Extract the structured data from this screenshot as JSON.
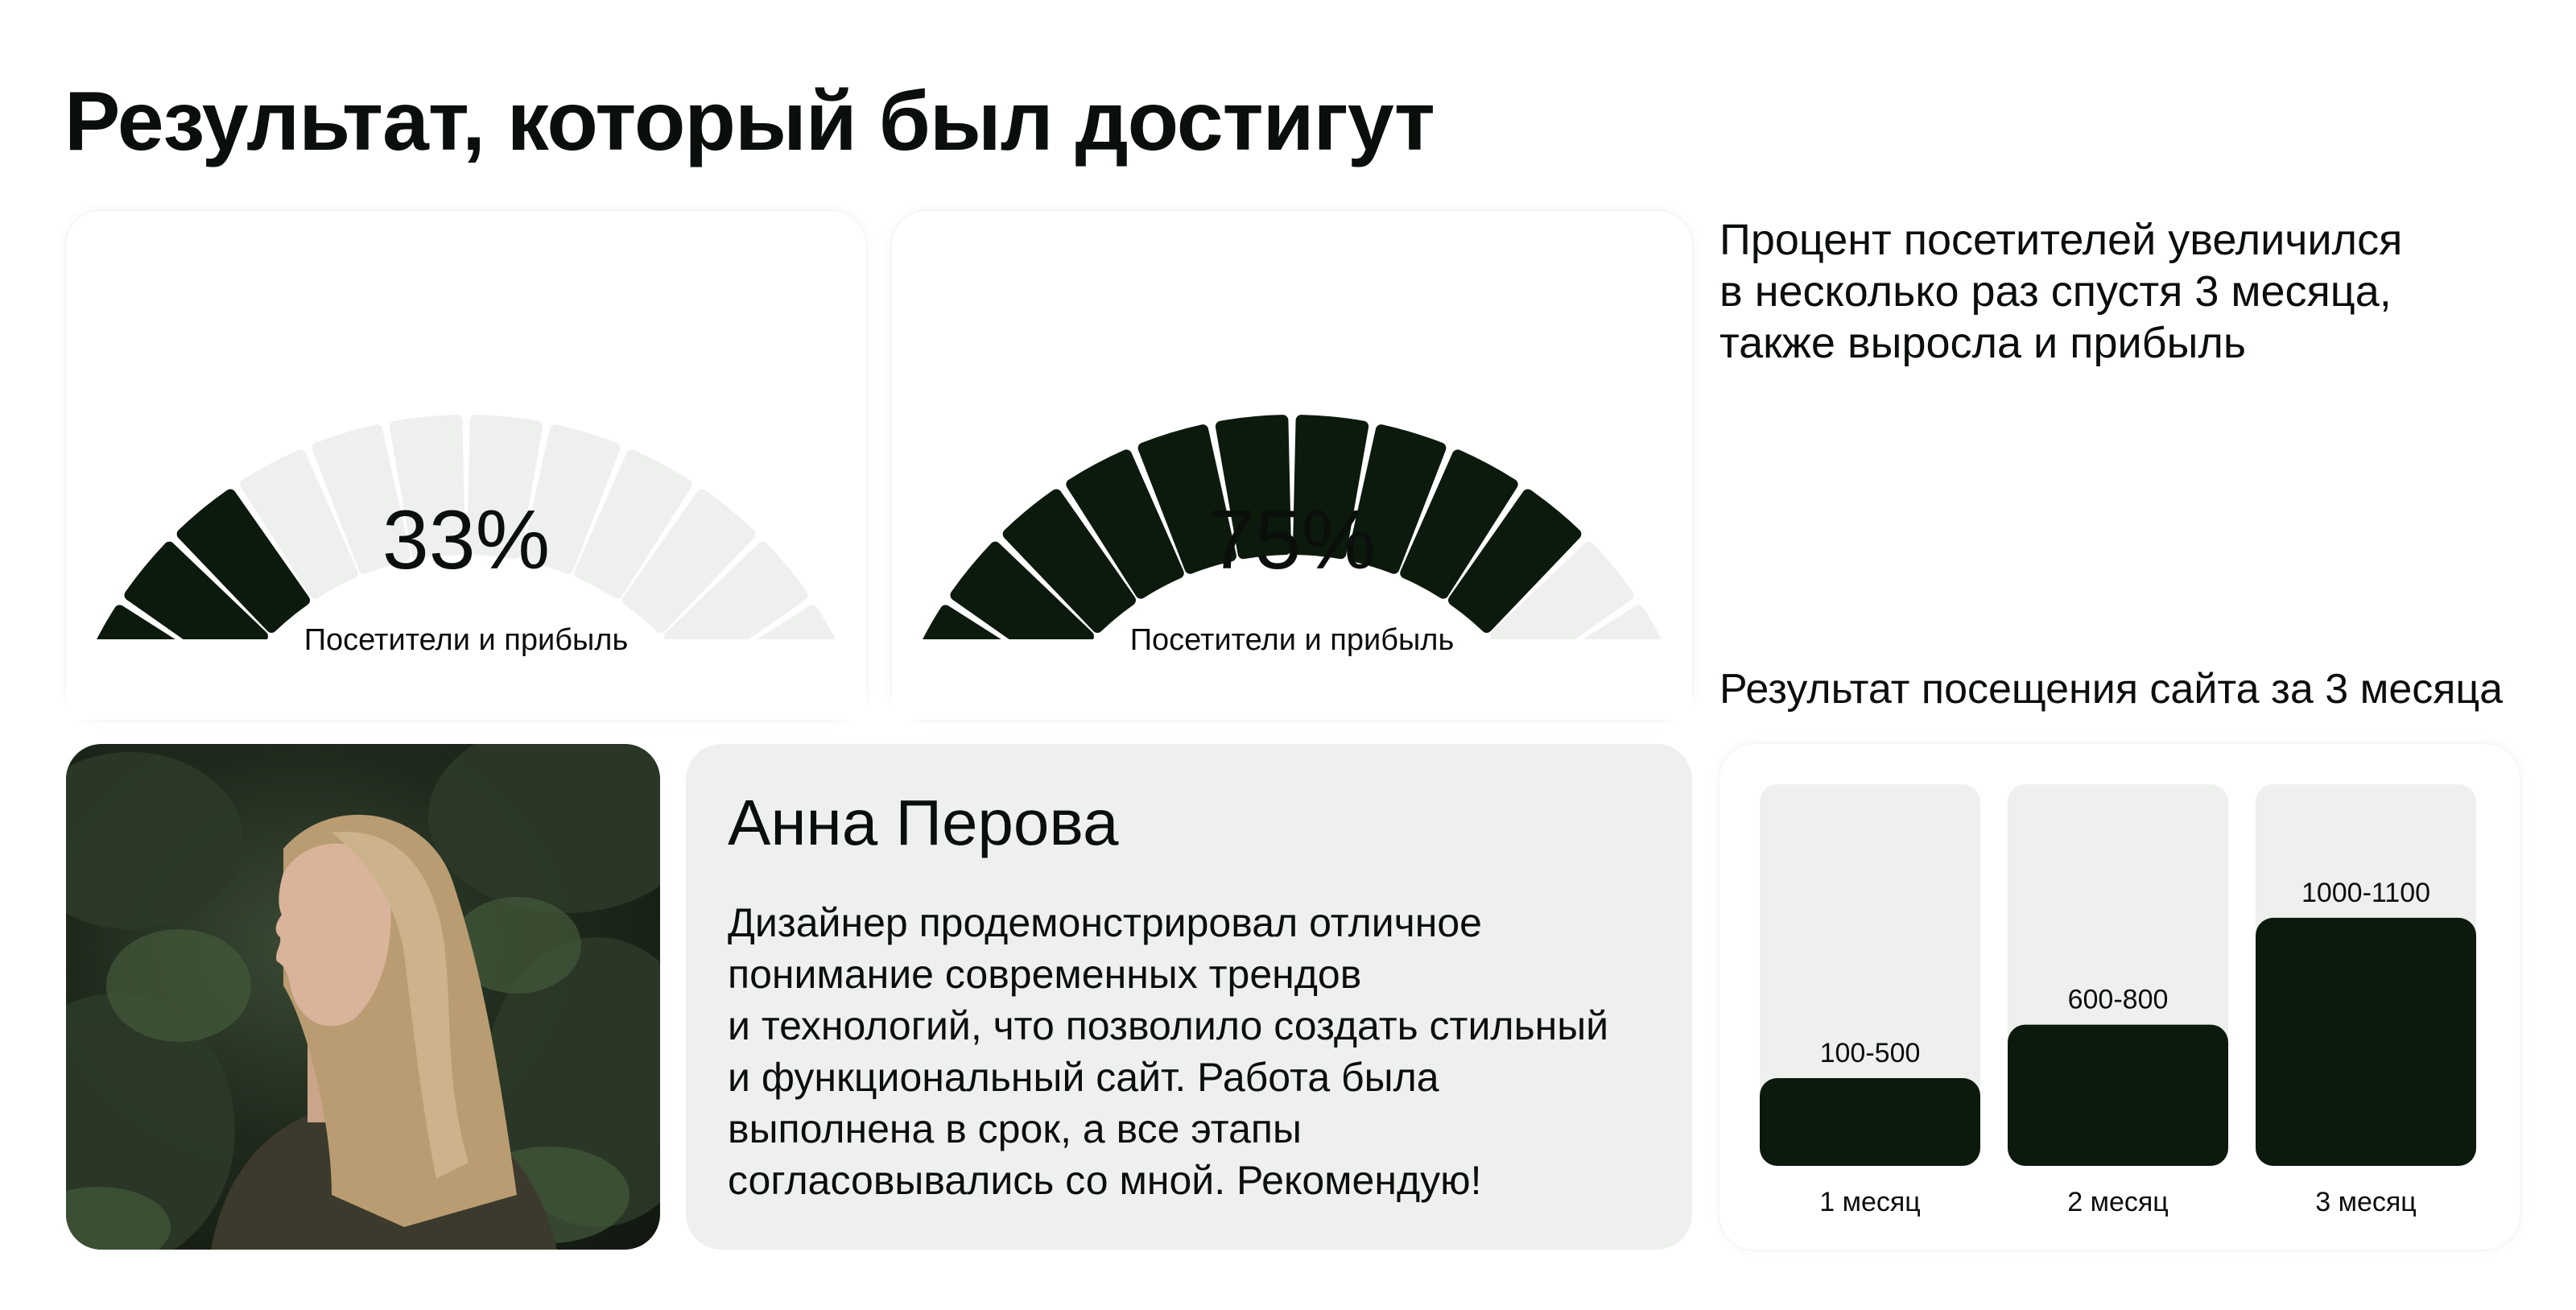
{
  "title": "Результат, который был достигут",
  "gauges": [
    {
      "value": 33,
      "label_value": "33%",
      "label": "Посетители и прибыль",
      "filled_segments": 5,
      "total_segments": 16
    },
    {
      "value": 75,
      "label_value": "75%",
      "label": "Посетители и прибыль",
      "filled_segments": 12,
      "total_segments": 16
    }
  ],
  "stats_text": "Процент посетителей увеличился\nв несколько раз спустя 3 месяца,\nтакже выросла и прибыль",
  "chart_title": "Результат посещения сайта за 3 месяца",
  "review": {
    "name": "Анна Перова",
    "text": "Дизайнер продемонстрировал отличное\nпонимание современных трендов\nи технологий, что позволило создать стильный\nи функциональный сайт. Работа была\nвыполнена в срок, а все этапы\nсогласовывались со мной. Рекомендую!"
  },
  "chart_data": {
    "type": "bar",
    "categories": [
      "1 месяц",
      "2 месяц",
      "3 месяц"
    ],
    "value_labels": [
      "100-500",
      "600-800",
      "1000-1100"
    ],
    "values": [
      0.23,
      0.37,
      0.65
    ]
  },
  "colors": {
    "dark": "#0b1a0d",
    "light_segment": "#eef0ee",
    "track": "#eef0ee"
  }
}
